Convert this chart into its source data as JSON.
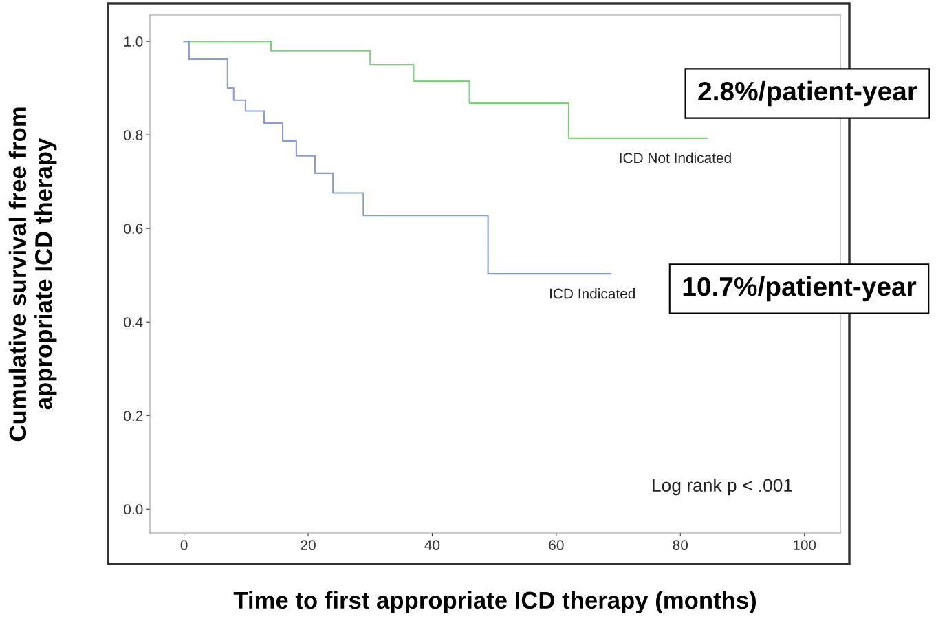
{
  "chart_data": {
    "type": "step",
    "xlabel": "Time to first appropriate ICD therapy (months)",
    "ylabel": "Cumulative survival free from\nappropriate ICD therapy",
    "series": [
      {
        "name": "ICD Not Indicated",
        "color": "#7fd07f",
        "x": [
          0,
          14,
          30,
          37,
          46,
          62,
          84.3
        ],
        "values": [
          1.0,
          0.98,
          0.95,
          0.915,
          0.868,
          0.793,
          0.793
        ]
      },
      {
        "name": "ICD Indicated",
        "color": "#8a9cd6",
        "x": [
          0,
          0.8,
          7,
          8,
          9.9,
          12.9,
          15.9,
          18.1,
          21.1,
          24,
          28.9,
          49,
          68.8
        ],
        "values": [
          1.0,
          0.962,
          0.9,
          0.874,
          0.851,
          0.825,
          0.787,
          0.755,
          0.718,
          0.676,
          0.628,
          0.503,
          0.503
        ]
      }
    ],
    "xlim": [
      -5.5,
      105.8
    ],
    "ylim": [
      -0.051,
      1.056
    ],
    "xticks": [
      0,
      20,
      40,
      60,
      80,
      100
    ],
    "yticks": [
      {
        "value": 0,
        "label": "0.0"
      },
      {
        "value": 0.2,
        "label": "0.2"
      },
      {
        "value": 0.4,
        "label": "0.4"
      },
      {
        "value": 0.6,
        "label": "0.6"
      },
      {
        "value": 0.8,
        "label": "0.8"
      },
      {
        "value": 1,
        "label": "1.0"
      }
    ],
    "grid": false,
    "legend": false,
    "annotations": [
      "2.8%/patient-year",
      "10.7%/patient-year",
      "Log rank p < .001"
    ]
  }
}
